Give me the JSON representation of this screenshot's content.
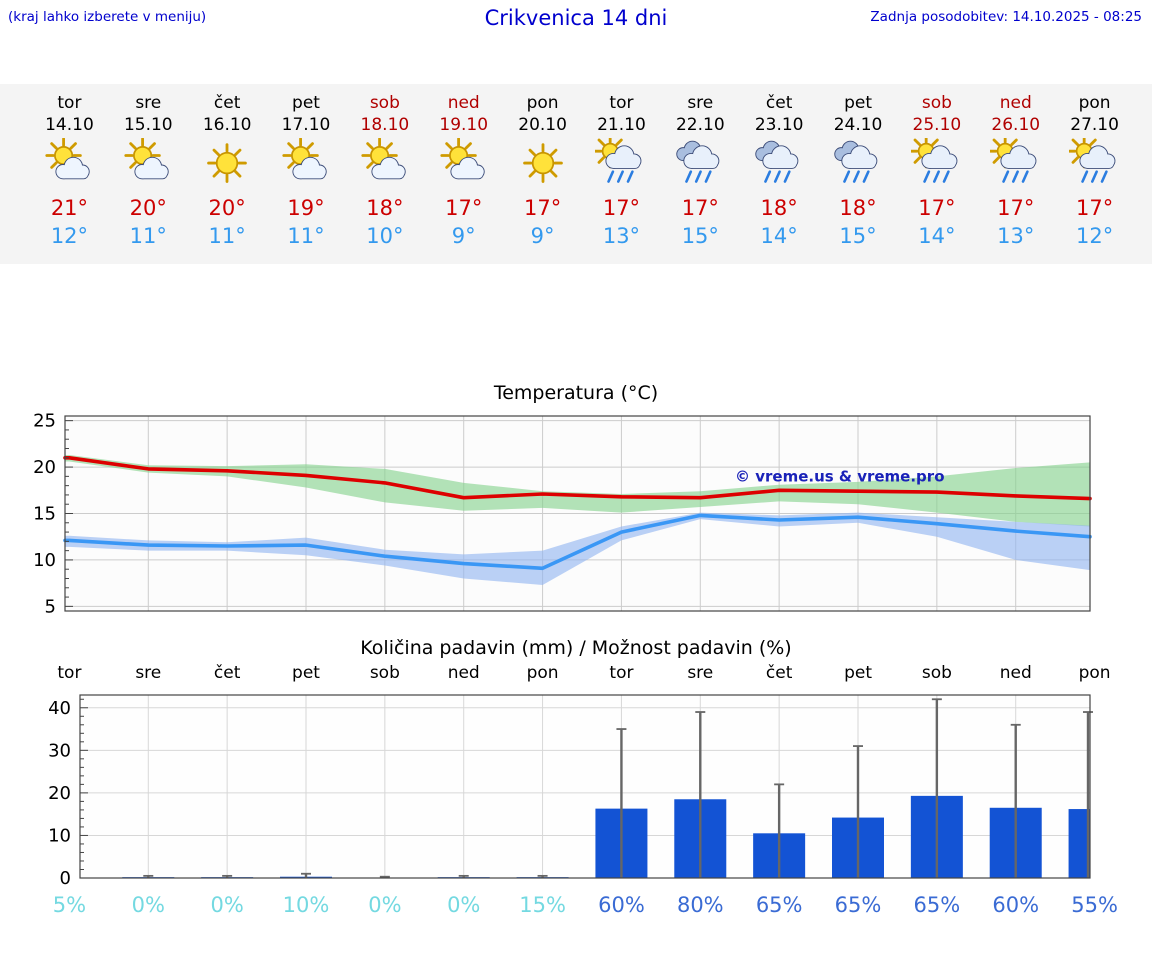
{
  "header": {
    "left_note": "(kraj lahko izberete v meniju)",
    "title": "Crikvenica 14 dni",
    "last_update": "Zadnja posodobitev: 14.10.2025 - 08:25"
  },
  "colors": {
    "accent_blue": "#0000cd",
    "weekend_red": "#b00000",
    "temp_max_text": "#cc0000",
    "temp_min_text": "#3399ee",
    "temp_max_line": "#dd0000",
    "temp_min_line": "#3a97f5",
    "band_max_green": "#85d28d",
    "band_min_blue": "#92b4f0",
    "bar_blue": "#1353d4",
    "pct_low": "#74d9e1",
    "pct_high": "#3a6bd4"
  },
  "forecast": {
    "days": [
      {
        "name": "tor",
        "date": "14.10",
        "icon": "partly-cloudy",
        "tmax": "21°",
        "tmin": "12°",
        "weekend": false
      },
      {
        "name": "sre",
        "date": "15.10",
        "icon": "partly-cloudy",
        "tmax": "20°",
        "tmin": "11°",
        "weekend": false
      },
      {
        "name": "čet",
        "date": "16.10",
        "icon": "sunny",
        "tmax": "20°",
        "tmin": "11°",
        "weekend": false
      },
      {
        "name": "pet",
        "date": "17.10",
        "icon": "partly-cloudy",
        "tmax": "19°",
        "tmin": "11°",
        "weekend": false
      },
      {
        "name": "sob",
        "date": "18.10",
        "icon": "partly-cloudy",
        "tmax": "18°",
        "tmin": "10°",
        "weekend": true
      },
      {
        "name": "ned",
        "date": "19.10",
        "icon": "partly-cloudy",
        "tmax": "17°",
        "tmin": "9°",
        "weekend": true
      },
      {
        "name": "pon",
        "date": "20.10",
        "icon": "sunny",
        "tmax": "17°",
        "tmin": "9°",
        "weekend": false
      },
      {
        "name": "tor",
        "date": "21.10",
        "icon": "rain-sun",
        "tmax": "17°",
        "tmin": "13°",
        "weekend": false
      },
      {
        "name": "sre",
        "date": "22.10",
        "icon": "rain",
        "tmax": "17°",
        "tmin": "15°",
        "weekend": false
      },
      {
        "name": "čet",
        "date": "23.10",
        "icon": "rain",
        "tmax": "18°",
        "tmin": "14°",
        "weekend": false
      },
      {
        "name": "pet",
        "date": "24.10",
        "icon": "rain",
        "tmax": "18°",
        "tmin": "15°",
        "weekend": false
      },
      {
        "name": "sob",
        "date": "25.10",
        "icon": "rain-sun",
        "tmax": "17°",
        "tmin": "14°",
        "weekend": true
      },
      {
        "name": "ned",
        "date": "26.10",
        "icon": "rain-sun",
        "tmax": "17°",
        "tmin": "13°",
        "weekend": true
      },
      {
        "name": "pon",
        "date": "27.10",
        "icon": "rain-sun",
        "tmax": "17°",
        "tmin": "12°",
        "weekend": false
      }
    ]
  },
  "chart_data": [
    {
      "type": "line",
      "title": "Temperatura (°C)",
      "x_labels": [
        "14.10",
        "15.10",
        "16.10",
        "17.10",
        "18.10",
        "19.10",
        "20.10",
        "21.10",
        "22.10",
        "23.10",
        "24.10",
        "25.10",
        "26.10",
        "27.10"
      ],
      "ylim": [
        4.5,
        25.5
      ],
      "yticks": [
        5,
        10,
        15,
        20,
        25
      ],
      "grid": true,
      "legend": "none",
      "annotation": "© vreme.us & vreme.pro",
      "series": [
        {
          "name": "temperatura-max",
          "color": "#dd0000",
          "values": [
            21.0,
            19.8,
            19.6,
            19.1,
            18.3,
            16.7,
            17.1,
            16.8,
            16.7,
            17.5,
            17.4,
            17.3,
            16.9,
            16.6
          ]
        },
        {
          "name": "temperatura-min",
          "color": "#3a97f5",
          "values": [
            12.1,
            11.6,
            11.5,
            11.6,
            10.4,
            9.6,
            9.1,
            13.0,
            14.8,
            14.3,
            14.6,
            13.9,
            13.1,
            12.5
          ]
        }
      ],
      "bands": [
        {
          "name": "max-razpon",
          "color": "#85d28d",
          "upper": [
            21.3,
            20.2,
            20.1,
            20.3,
            19.8,
            18.3,
            17.4,
            17.1,
            17.4,
            18.1,
            18.4,
            19.0,
            19.9,
            20.5
          ],
          "lower": [
            20.6,
            19.4,
            19.0,
            17.8,
            16.2,
            15.3,
            15.6,
            15.1,
            15.7,
            16.3,
            16.0,
            15.1,
            14.1,
            13.6
          ]
        },
        {
          "name": "min-razpon",
          "color": "#92b4f0",
          "upper": [
            12.6,
            12.1,
            11.9,
            12.4,
            11.1,
            10.6,
            11.0,
            13.6,
            15.1,
            14.8,
            15.1,
            14.6,
            14.1,
            13.7
          ],
          "lower": [
            11.4,
            11.0,
            11.0,
            10.5,
            9.4,
            8.0,
            7.3,
            12.1,
            14.4,
            13.6,
            14.0,
            12.5,
            10.0,
            8.9
          ]
        }
      ]
    },
    {
      "type": "bar",
      "title": "Količina padavin (mm) / Možnost padavin (%)",
      "categories": [
        "tor",
        "sre",
        "čet",
        "pet",
        "sob",
        "ned",
        "pon",
        "tor",
        "sre",
        "čet",
        "pet",
        "sob",
        "ned",
        "pon"
      ],
      "values_mm": [
        0,
        0.2,
        0.2,
        0.3,
        0.1,
        0.2,
        0.2,
        16.3,
        18.5,
        10.5,
        14.2,
        19.3,
        16.5,
        16.2
      ],
      "whisker_max_mm": [
        0,
        0.5,
        0.5,
        1,
        0.3,
        0.5,
        0.5,
        35,
        39,
        22,
        31,
        42,
        36,
        39
      ],
      "probability_pct": [
        5,
        0,
        0,
        10,
        0,
        0,
        15,
        60,
        80,
        65,
        65,
        65,
        60,
        55
      ],
      "ylim": [
        0,
        43
      ],
      "yticks": [
        0,
        10,
        20,
        30,
        40
      ],
      "bar_color": "#1353d4",
      "whisker_color": "#666666"
    }
  ]
}
